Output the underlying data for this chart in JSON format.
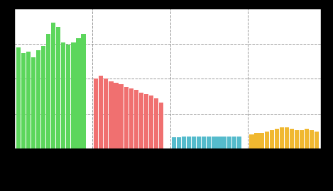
{
  "green_values": [
    72,
    68,
    69,
    65,
    70,
    73,
    82,
    90,
    87,
    76,
    74,
    76,
    79,
    82
  ],
  "red_values": [
    50,
    52,
    50,
    48,
    47,
    46,
    44,
    43,
    42,
    40,
    39,
    38,
    36,
    33
  ],
  "teal_values": [
    8,
    8,
    8.5,
    8.5,
    8.5,
    8.5,
    8.5,
    8.5,
    8.5,
    8.5,
    8.5,
    8.5,
    8.5,
    8.5
  ],
  "yellow_values": [
    10,
    11,
    11,
    12,
    13,
    14,
    15,
    15,
    14,
    13,
    13,
    14,
    13,
    12
  ],
  "green_color": "#5cd65c",
  "red_color": "#f07070",
  "teal_color": "#55bbcc",
  "yellow_color": "#f0b830",
  "plot_bg_color": "#ffffff",
  "grid_color": "#999999",
  "outer_bg": "#000000",
  "ylim": [
    0,
    100
  ],
  "bar_width": 0.88
}
